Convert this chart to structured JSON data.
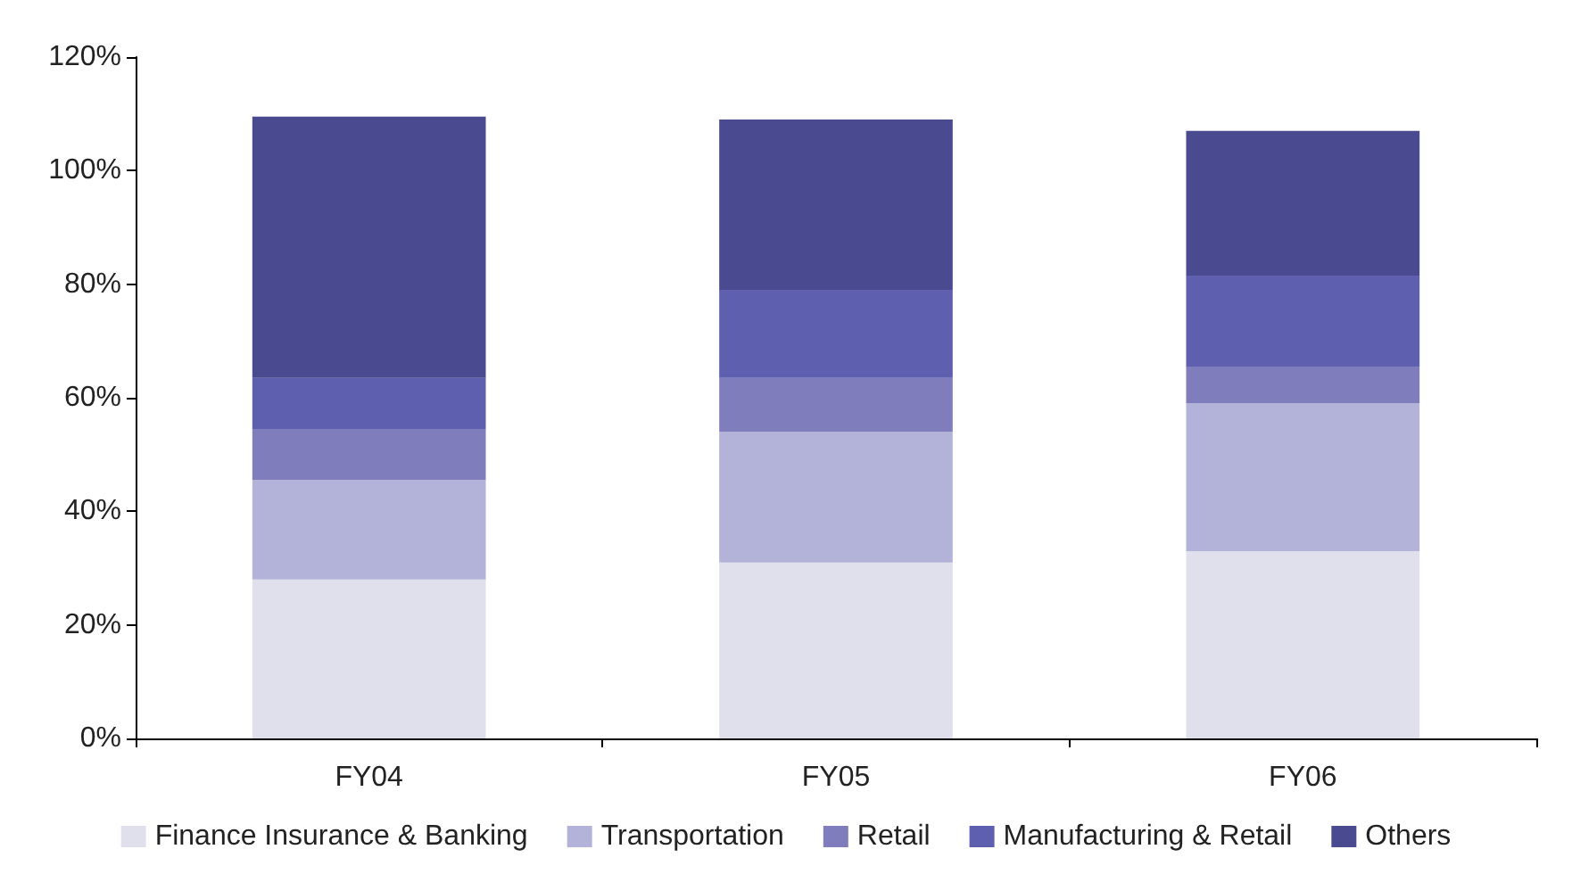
{
  "chart_data": {
    "type": "bar",
    "stacked": true,
    "categories": [
      "FY04",
      "FY05",
      "FY06"
    ],
    "series": [
      {
        "name": "Finance Insurance & Banking",
        "color": "#e0e0ed",
        "values": [
          28,
          31,
          33
        ]
      },
      {
        "name": "Transportation",
        "color": "#b3b3d9",
        "values": [
          17.5,
          23,
          26
        ]
      },
      {
        "name": "Retail",
        "color": "#7f7dbb",
        "values": [
          9,
          9.5,
          6.5
        ]
      },
      {
        "name": "Manufacturing & Retail",
        "color": "#5e5faf",
        "values": [
          9,
          15.5,
          16
        ]
      },
      {
        "name": "Others",
        "color": "#494a8f",
        "values": [
          46,
          30,
          25.5
        ]
      }
    ],
    "ylim": [
      0,
      120
    ],
    "yticks": [
      {
        "value": 0,
        "label": "0%"
      },
      {
        "value": 20,
        "label": "20%"
      },
      {
        "value": 40,
        "label": "40%"
      },
      {
        "value": 60,
        "label": "60%"
      },
      {
        "value": 80,
        "label": "80%"
      },
      {
        "value": 100,
        "label": "100%"
      },
      {
        "value": 120,
        "label": "120%"
      }
    ],
    "grid": false,
    "legend": "bottom"
  }
}
